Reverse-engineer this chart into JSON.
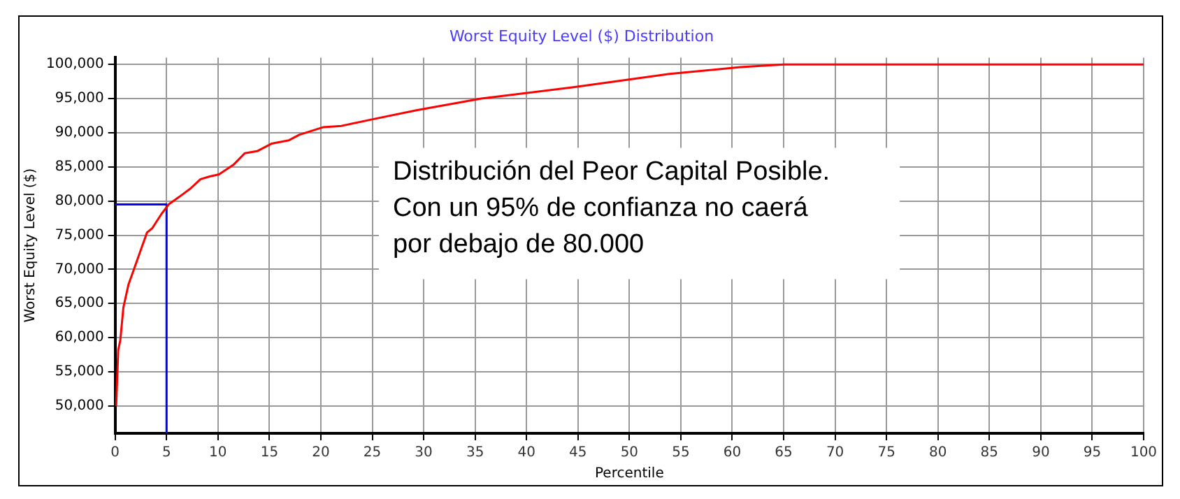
{
  "chart_data": {
    "type": "line",
    "title": "Worst Equity Level ($) Distribution",
    "xlabel": "Percentile",
    "ylabel": "Worst Equity Level ($)",
    "annotations": [
      "Distribución del Peor Capital Posible.\nCon un 95% de confianza no caerá\npor debajo de 80.000"
    ],
    "series": [
      {
        "color": "#ff0000",
        "x": [
          0.1,
          0.3,
          0.5,
          0.8,
          1.3,
          1.8,
          2.6,
          3.1,
          3.6,
          4.5,
          5.2,
          6.4,
          7.3,
          8.3,
          9.2,
          10.1,
          11.5,
          12.6,
          13.8,
          15.2,
          16.9,
          17.9,
          20.2,
          22,
          24.8,
          29.3,
          35.6,
          44.7,
          53.9,
          60.8,
          65,
          100
        ],
        "values": [
          50000,
          58200,
          59600,
          64400,
          67800,
          69900,
          73300,
          75400,
          76000,
          78100,
          79500,
          80800,
          81800,
          83200,
          83600,
          83900,
          85300,
          87000,
          87300,
          88400,
          88900,
          89700,
          90800,
          91000,
          91900,
          93300,
          95000,
          96700,
          98600,
          99600,
          100000,
          100000
        ]
      },
      {
        "color": "#0000ff",
        "x": [
          0,
          5,
          5
        ],
        "values": [
          79500,
          79500,
          46000
        ]
      }
    ],
    "xlim": [
      0,
      100
    ],
    "xticks": [
      0,
      5,
      10,
      15,
      20,
      25,
      30,
      35,
      40,
      45,
      50,
      55,
      60,
      65,
      70,
      75,
      80,
      85,
      90,
      95,
      100
    ],
    "ylim": [
      46000,
      101000
    ],
    "yticks": [
      {
        "value": 50000,
        "label": "50,000"
      },
      {
        "value": 55000,
        "label": "55,000"
      },
      {
        "value": 60000,
        "label": "60,000"
      },
      {
        "value": 65000,
        "label": "65,000"
      },
      {
        "value": 70000,
        "label": "70,000"
      },
      {
        "value": 75000,
        "label": "75,000"
      },
      {
        "value": 80000,
        "label": "80,000"
      },
      {
        "value": 85000,
        "label": "85,000"
      },
      {
        "value": 90000,
        "label": "90,000"
      },
      {
        "value": 95000,
        "label": "95,000"
      },
      {
        "value": 100000,
        "label": "100,000"
      }
    ],
    "grid": true,
    "line_style": "solid",
    "marker": "none",
    "legend": false
  }
}
